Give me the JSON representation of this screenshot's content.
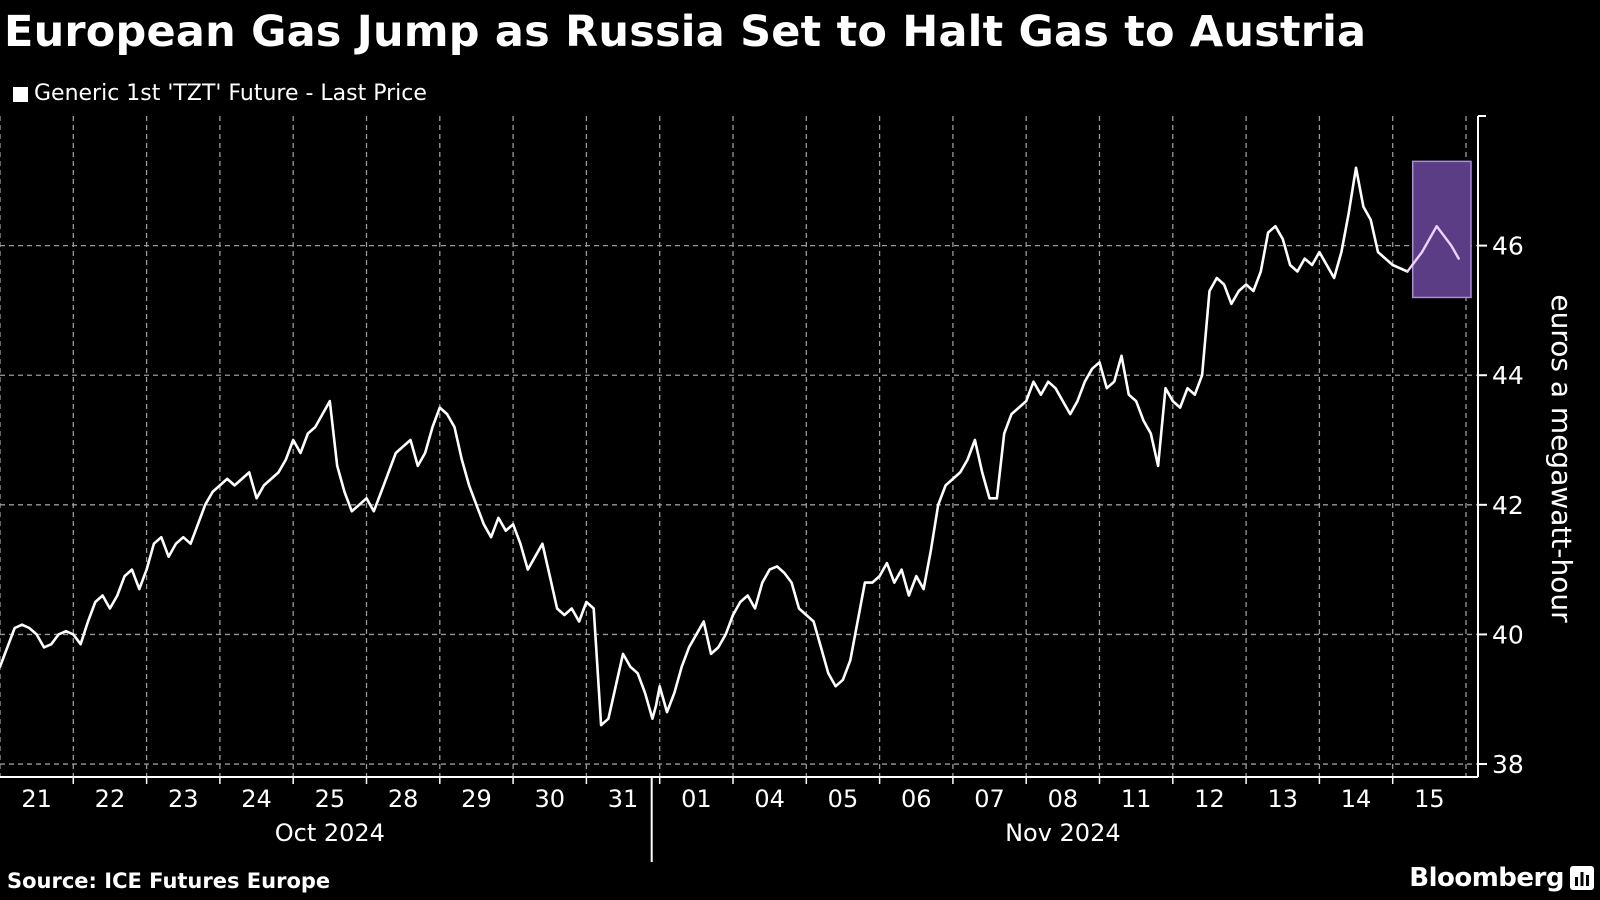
{
  "header": {
    "title": "European Gas Jump as Russia Set to Halt Gas to Austria",
    "legend": "Generic 1st 'TZT' Future - Last Price"
  },
  "footer": {
    "source": "Source: ICE Futures Europe",
    "brand": "Bloomberg"
  },
  "colors": {
    "background": "#000000",
    "line": "#ffffff",
    "highlight_fill": "#5b3d86",
    "highlight_stroke": "#a98ed6",
    "highlight_line": "#f0d2ff",
    "grid": "#9a9a9a"
  },
  "icons": {
    "legend": "square-swatch-icon",
    "brand": "bloomberg-logo-icon"
  },
  "chart_data": {
    "type": "line",
    "title": "European Gas Jump as Russia Set to Halt Gas to Austria",
    "ylabel": "euros a megawatt-hour",
    "xlabel": "",
    "y_position": "right",
    "ylim": [
      37.8,
      48.0
    ],
    "yticks": [
      38,
      40,
      42,
      44,
      46
    ],
    "grid": true,
    "legend_position": "top-left",
    "categories": [
      "21",
      "22",
      "23",
      "24",
      "25",
      "28",
      "29",
      "30",
      "31",
      "01",
      "04",
      "05",
      "06",
      "07",
      "08",
      "11",
      "12",
      "13",
      "14",
      "15"
    ],
    "month_labels": [
      {
        "label": "Oct 2024",
        "center_day": "25"
      },
      {
        "label": "Nov 2024",
        "center_day": "08"
      }
    ],
    "highlight": {
      "from_day": "15",
      "ymin": 45.2,
      "ymax": 47.3
    },
    "series": [
      {
        "name": "Generic 1st 'TZT' Future - Last Price",
        "x": [
          0,
          0.1,
          0.2,
          0.3,
          0.4,
          0.5,
          0.6,
          0.7,
          0.8,
          0.9,
          1.0,
          1.1,
          1.2,
          1.3,
          1.4,
          1.5,
          1.6,
          1.7,
          1.8,
          1.9,
          2.0,
          2.1,
          2.2,
          2.3,
          2.4,
          2.5,
          2.6,
          2.7,
          2.8,
          2.9,
          3.0,
          3.1,
          3.2,
          3.3,
          3.4,
          3.5,
          3.6,
          3.7,
          3.8,
          3.9,
          4.0,
          4.1,
          4.2,
          4.3,
          4.4,
          4.5,
          4.6,
          4.7,
          4.8,
          4.9,
          5.0,
          5.1,
          5.2,
          5.3,
          5.4,
          5.5,
          5.6,
          5.7,
          5.8,
          5.9,
          6.0,
          6.1,
          6.2,
          6.3,
          6.4,
          6.5,
          6.6,
          6.7,
          6.8,
          6.9,
          7.0,
          7.1,
          7.2,
          7.3,
          7.4,
          7.5,
          7.6,
          7.7,
          7.8,
          7.9,
          8.0,
          8.1,
          8.2,
          8.3,
          8.4,
          8.5,
          8.6,
          8.7,
          8.8,
          8.9,
          8.95,
          9.0,
          9.1,
          9.2,
          9.3,
          9.4,
          9.5,
          9.6,
          9.7,
          9.8,
          9.9,
          10.0,
          10.1,
          10.2,
          10.3,
          10.4,
          10.5,
          10.6,
          10.7,
          10.8,
          10.9,
          11.0,
          11.1,
          11.2,
          11.3,
          11.4,
          11.5,
          11.6,
          11.7,
          11.8,
          11.9,
          12.0,
          12.1,
          12.2,
          12.3,
          12.4,
          12.5,
          12.6,
          12.7,
          12.8,
          12.9,
          13.0,
          13.1,
          13.2,
          13.3,
          13.4,
          13.5,
          13.6,
          13.7,
          13.8,
          13.9,
          14.0,
          14.1,
          14.2,
          14.3,
          14.4,
          14.5,
          14.6,
          14.7,
          14.8,
          14.9,
          15.0,
          15.1,
          15.2,
          15.3,
          15.4,
          15.5,
          15.6,
          15.7,
          15.8,
          15.9,
          16.0,
          16.1,
          16.2,
          16.3,
          16.4,
          16.5,
          16.6,
          16.7,
          16.8,
          16.9,
          17.0,
          17.1,
          17.2,
          17.3,
          17.4,
          17.5,
          17.6,
          17.7,
          17.8,
          17.9,
          18.0,
          18.1,
          18.2,
          18.3,
          18.4,
          18.5,
          18.6,
          18.7,
          18.8,
          18.9,
          19.0,
          19.2,
          19.4,
          19.6,
          19.8,
          19.9
        ],
        "values": [
          39.5,
          39.8,
          40.1,
          40.15,
          40.1,
          40.0,
          39.8,
          39.85,
          40.0,
          40.05,
          40.0,
          39.85,
          40.2,
          40.5,
          40.6,
          40.4,
          40.6,
          40.9,
          41.0,
          40.7,
          41.0,
          41.4,
          41.5,
          41.2,
          41.4,
          41.5,
          41.4,
          41.7,
          42.0,
          42.2,
          42.3,
          42.4,
          42.3,
          42.4,
          42.5,
          42.1,
          42.3,
          42.4,
          42.5,
          42.7,
          43.0,
          42.8,
          43.1,
          43.2,
          43.4,
          43.6,
          42.6,
          42.2,
          41.9,
          42.0,
          42.1,
          41.9,
          42.2,
          42.5,
          42.8,
          42.9,
          43.0,
          42.6,
          42.8,
          43.2,
          43.5,
          43.4,
          43.2,
          42.7,
          42.3,
          42.0,
          41.7,
          41.5,
          41.8,
          41.6,
          41.7,
          41.4,
          41.0,
          41.2,
          41.4,
          40.9,
          40.4,
          40.3,
          40.4,
          40.2,
          40.5,
          40.4,
          38.6,
          38.7,
          39.2,
          39.7,
          39.5,
          39.4,
          39.1,
          38.7,
          38.9,
          39.2,
          38.8,
          39.1,
          39.5,
          39.8,
          40.0,
          40.2,
          39.7,
          39.8,
          40.0,
          40.3,
          40.5,
          40.6,
          40.4,
          40.8,
          41.0,
          41.05,
          40.95,
          40.8,
          40.4,
          40.3,
          40.2,
          39.8,
          39.4,
          39.2,
          39.3,
          39.6,
          40.2,
          40.8,
          40.8,
          40.9,
          41.1,
          40.8,
          41.0,
          40.6,
          40.9,
          40.7,
          41.3,
          42.0,
          42.3,
          42.4,
          42.5,
          42.7,
          43.0,
          42.5,
          42.1,
          42.1,
          43.1,
          43.4,
          43.5,
          43.6,
          43.9,
          43.7,
          43.9,
          43.8,
          43.6,
          43.4,
          43.6,
          43.9,
          44.1,
          44.2,
          43.8,
          43.9,
          44.3,
          43.7,
          43.6,
          43.3,
          43.1,
          42.6,
          43.8,
          43.6,
          43.5,
          43.8,
          43.7,
          44.0,
          45.3,
          45.5,
          45.4,
          45.1,
          45.3,
          45.4,
          45.3,
          45.6,
          46.2,
          46.3,
          46.1,
          45.7,
          45.6,
          45.8,
          45.7,
          45.9,
          45.7,
          45.5,
          45.9,
          46.5,
          47.2,
          46.6,
          46.4,
          45.9,
          45.8,
          45.7,
          45.6,
          45.9,
          46.3,
          46.0,
          45.8
        ]
      }
    ]
  }
}
